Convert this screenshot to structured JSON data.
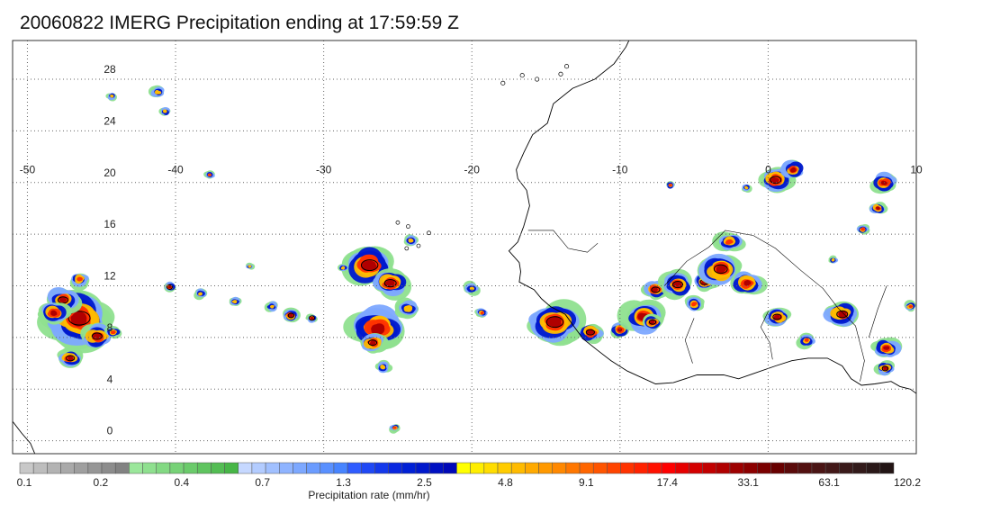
{
  "title": "20060822 IMERG Precipitation ending at 17:59:59 Z",
  "map": {
    "lon_range": [
      -51,
      10
    ],
    "lat_range": [
      -1,
      31
    ],
    "lon_ticks": [
      -50,
      -40,
      -30,
      -20,
      -10,
      0,
      10
    ],
    "lat_ticks": [
      0,
      4,
      8,
      12,
      16,
      20,
      24,
      28
    ],
    "lon_tick_labels": [
      "-50",
      "-40",
      "-30",
      "-20",
      "-10",
      "0",
      "10"
    ],
    "lat_tick_labels": [
      "0",
      "4",
      "8",
      "12",
      "16",
      "20",
      "24",
      "28"
    ],
    "grid": "dotted"
  },
  "colorbar": {
    "title": "Precipitation rate (mm/hr)",
    "labels": [
      "0.1",
      "0.2",
      "0.4",
      "0.7",
      "1.3",
      "2.5",
      "4.8",
      "9.1",
      "17.4",
      "33.1",
      "63.1",
      "120.2"
    ],
    "colors": [
      "#c8c8c8",
      "#bdbdbd",
      "#b3b3b3",
      "#a9a9a9",
      "#9f9f9f",
      "#969696",
      "#8c8c8c",
      "#828282",
      "#9be79b",
      "#8fe08f",
      "#83d983",
      "#77d277",
      "#6bcb6b",
      "#5fc45f",
      "#53bd53",
      "#47b647",
      "#c6d8ff",
      "#b3ccff",
      "#a1c0ff",
      "#8fb4ff",
      "#7da8ff",
      "#6b9cff",
      "#5990ff",
      "#4784ff",
      "#2f5cff",
      "#1f48f5",
      "#1438eb",
      "#0a28e0",
      "#0020d6",
      "#0018cc",
      "#0010c2",
      "#0008b8",
      "#ffff00",
      "#ffee00",
      "#ffdd00",
      "#ffcc00",
      "#ffbb00",
      "#ffaa00",
      "#ff9900",
      "#ff8800",
      "#ff7700",
      "#ff6600",
      "#ff5500",
      "#ff4400",
      "#ff3300",
      "#ff2200",
      "#ff1100",
      "#ff0000",
      "#e60000",
      "#d40000",
      "#c20000",
      "#b00000",
      "#9e0000",
      "#8c0000",
      "#7a0000",
      "#680000",
      "#5a0a0a",
      "#521010",
      "#4a1414",
      "#421818",
      "#3a1a1a",
      "#321a1a",
      "#2a1818",
      "#221414"
    ]
  },
  "precip_systems": [
    {
      "lon": -46.5,
      "lat": 9.5,
      "size": 2.6,
      "peak": 55
    },
    {
      "lon": -47.6,
      "lat": 10.9,
      "size": 1.2,
      "peak": 52
    },
    {
      "lon": -45.3,
      "lat": 8.1,
      "size": 1.2,
      "peak": 56
    },
    {
      "lon": -47.1,
      "lat": 6.4,
      "size": 1.0,
      "peak": 50
    },
    {
      "lon": -48.2,
      "lat": 9.9,
      "size": 1.1,
      "peak": 30
    },
    {
      "lon": -44.2,
      "lat": 8.4,
      "size": 0.6,
      "peak": 24
    },
    {
      "lon": -46.5,
      "lat": 12.5,
      "size": 0.8,
      "peak": 18
    },
    {
      "lon": -40.4,
      "lat": 11.9,
      "size": 0.5,
      "peak": 46
    },
    {
      "lon": -38.3,
      "lat": 11.4,
      "size": 0.5,
      "peak": 12
    },
    {
      "lon": -36.0,
      "lat": 10.8,
      "size": 0.5,
      "peak": 12
    },
    {
      "lon": -33.5,
      "lat": 10.4,
      "size": 0.5,
      "peak": 12
    },
    {
      "lon": -32.2,
      "lat": 9.7,
      "size": 0.7,
      "peak": 46
    },
    {
      "lon": -30.8,
      "lat": 9.5,
      "size": 0.4,
      "peak": 40
    },
    {
      "lon": -26.9,
      "lat": 13.6,
      "size": 2.0,
      "peak": 56
    },
    {
      "lon": -25.5,
      "lat": 12.2,
      "size": 1.4,
      "peak": 40
    },
    {
      "lon": -26.4,
      "lat": 8.7,
      "size": 2.0,
      "peak": 30
    },
    {
      "lon": -26.7,
      "lat": 7.6,
      "size": 1.0,
      "peak": 50
    },
    {
      "lon": -24.3,
      "lat": 10.2,
      "size": 1.0,
      "peak": 10
    },
    {
      "lon": -14.4,
      "lat": 9.2,
      "size": 2.0,
      "peak": 56
    },
    {
      "lon": -12.0,
      "lat": 8.4,
      "size": 1.0,
      "peak": 40
    },
    {
      "lon": -10.0,
      "lat": 8.6,
      "size": 0.8,
      "peak": 38
    },
    {
      "lon": -8.4,
      "lat": 9.6,
      "size": 1.5,
      "peak": 36
    },
    {
      "lon": -7.8,
      "lat": 9.2,
      "size": 0.8,
      "peak": 48
    },
    {
      "lon": -7.6,
      "lat": 11.7,
      "size": 1.0,
      "peak": 50
    },
    {
      "lon": -6.1,
      "lat": 12.1,
      "size": 1.2,
      "peak": 52
    },
    {
      "lon": -4.3,
      "lat": 12.3,
      "size": 1.0,
      "peak": 52
    },
    {
      "lon": -5.0,
      "lat": 10.6,
      "size": 0.8,
      "peak": 28
    },
    {
      "lon": -3.2,
      "lat": 13.3,
      "size": 1.6,
      "peak": 50
    },
    {
      "lon": -1.4,
      "lat": 12.2,
      "size": 1.2,
      "peak": 38
    },
    {
      "lon": -2.6,
      "lat": 15.4,
      "size": 1.0,
      "peak": 24
    },
    {
      "lon": 0.5,
      "lat": 20.2,
      "size": 1.3,
      "peak": 40
    },
    {
      "lon": 1.7,
      "lat": 21.0,
      "size": 0.9,
      "peak": 36
    },
    {
      "lon": 0.6,
      "lat": 9.6,
      "size": 1.0,
      "peak": 44
    },
    {
      "lon": 5.0,
      "lat": 9.8,
      "size": 1.3,
      "peak": 40
    },
    {
      "lon": 7.8,
      "lat": 20.0,
      "size": 1.0,
      "peak": 38
    },
    {
      "lon": 7.4,
      "lat": 18.0,
      "size": 0.6,
      "peak": 30
    },
    {
      "lon": 6.4,
      "lat": 16.4,
      "size": 0.5,
      "peak": 24
    },
    {
      "lon": 8.0,
      "lat": 7.2,
      "size": 1.0,
      "peak": 30
    },
    {
      "lon": 7.9,
      "lat": 5.6,
      "size": 0.7,
      "peak": 40
    },
    {
      "lon": 2.6,
      "lat": 7.8,
      "size": 0.7,
      "peak": 28
    },
    {
      "lon": 9.6,
      "lat": 10.4,
      "size": 0.5,
      "peak": 24
    },
    {
      "lon": -20.0,
      "lat": 11.8,
      "size": 0.6,
      "peak": 12
    },
    {
      "lon": -19.3,
      "lat": 9.9,
      "size": 0.5,
      "peak": 14
    },
    {
      "lon": -37.7,
      "lat": 20.6,
      "size": 0.4,
      "peak": 16
    },
    {
      "lon": -41.2,
      "lat": 27.0,
      "size": 0.6,
      "peak": 12
    },
    {
      "lon": -40.7,
      "lat": 25.5,
      "size": 0.5,
      "peak": 10
    },
    {
      "lon": -44.3,
      "lat": 26.7,
      "size": 0.4,
      "peak": 6
    },
    {
      "lon": -24.1,
      "lat": 15.5,
      "size": 0.6,
      "peak": 8
    },
    {
      "lon": -28.7,
      "lat": 13.4,
      "size": 0.4,
      "peak": 10
    },
    {
      "lon": -35.0,
      "lat": 13.5,
      "size": 0.3,
      "peak": 8
    },
    {
      "lon": -26.0,
      "lat": 5.7,
      "size": 0.6,
      "peak": 6
    },
    {
      "lon": -25.2,
      "lat": 1.0,
      "size": 0.4,
      "peak": 14
    },
    {
      "lon": -6.6,
      "lat": 19.8,
      "size": 0.4,
      "peak": 14
    },
    {
      "lon": -1.5,
      "lat": 19.6,
      "size": 0.4,
      "peak": 10
    },
    {
      "lon": 4.4,
      "lat": 14.0,
      "size": 0.4,
      "peak": 8
    }
  ]
}
